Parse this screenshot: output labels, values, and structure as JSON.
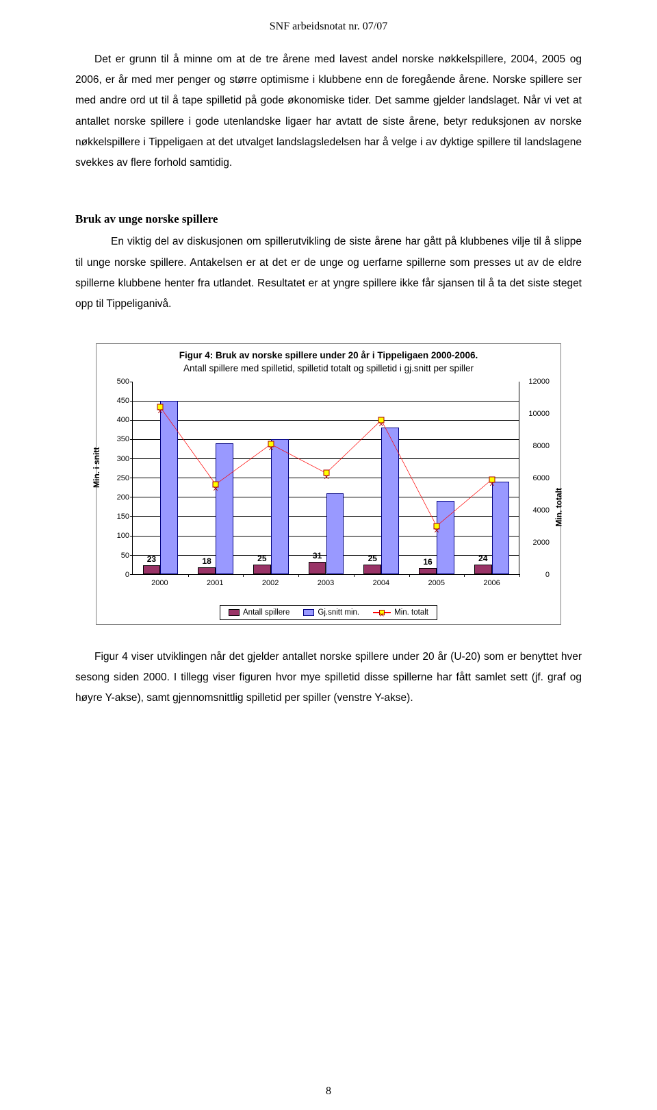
{
  "header": "SNF arbeidsnotat nr. 07/07",
  "para1": "Det er grunn til å minne om at de tre årene med lavest andel norske nøkkelspillere, 2004, 2005 og 2006, er år med mer penger og større optimisme i klubbene enn de foregående årene. Norske spillere ser med andre ord ut til å tape spilletid på gode økonomiske tider. Det samme gjelder landslaget. Når vi vet at antallet norske spillere i gode utenlandske ligaer har avtatt de siste årene, betyr reduksjonen av norske nøkkelspillere i Tippeligaen at det utvalget landslagsledelsen har å velge i av dyktige spillere til landslagene svekkes av flere forhold samtidig.",
  "section_heading": "Bruk av unge norske spillere",
  "para2": "En viktig del av diskusjonen om spillerutvikling de siste årene har gått på klubbenes vilje til å slippe til unge norske spillere. Antakelsen er at det er de unge og uerfarne spillerne som presses ut av de eldre spillerne klubbene henter fra utlandet. Resultatet er at yngre spillere ikke får sjansen til å ta det siste steget opp til Tippeliganivå.",
  "chart": {
    "title_bold": "Figur 4: Bruk av norske spillere under 20 år i Tippeligaen 2000-2006.",
    "title_sub": "Antall spillere med spilletid, spilletid totalt og spilletid i gj.snitt per spiller",
    "categories": [
      "2000",
      "2001",
      "2002",
      "2003",
      "2004",
      "2005",
      "2006"
    ],
    "antall": [
      23,
      18,
      25,
      31,
      25,
      16,
      24
    ],
    "gjsnitt": [
      450,
      340,
      350,
      210,
      380,
      190,
      240
    ],
    "totalt": [
      10400,
      5600,
      8100,
      6300,
      9600,
      3000,
      5900
    ],
    "y_left": {
      "min": 0,
      "max": 500,
      "step": 50,
      "label": "Min. i snitt"
    },
    "y_right": {
      "min": 0,
      "max": 12000,
      "step": 2000,
      "label": "Min. totalt"
    },
    "colors": {
      "antall_fill": "#993366",
      "antall_stroke": "#000000",
      "gjsnitt_fill": "#9999ff",
      "gjsnitt_stroke": "#000080",
      "line": "#ff0000",
      "marker_fill": "#ffff00",
      "marker_stroke": "#aa0000"
    },
    "legend": {
      "a": "Antall spillere",
      "b": "Gj.snitt min.",
      "c": "Min. totalt"
    }
  },
  "para3": "Figur 4 viser utviklingen når det gjelder antallet norske spillere under 20 år (U-20) som er benyttet hver sesong siden 2000. I tillegg viser figuren hvor mye spilletid disse spillerne har fått samlet sett (jf. graf og høyre Y-akse), samt gjennomsnittlig spilletid per spiller (venstre Y-akse).",
  "page_num": "8"
}
